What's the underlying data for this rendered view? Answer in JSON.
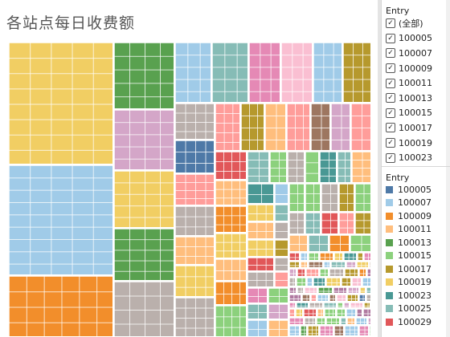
{
  "title": "各站点每日收费额",
  "filter": {
    "heading": "Entry",
    "items": [
      "(全部)",
      "100005",
      "100007",
      "100009",
      "100011",
      "100013",
      "100015",
      "100017",
      "100019",
      "100023"
    ],
    "check_glyph": "✓"
  },
  "legend": {
    "heading": "Entry",
    "items": [
      {
        "label": "100005",
        "color": "#4e79a7"
      },
      {
        "label": "100007",
        "color": "#a0cbe8"
      },
      {
        "label": "100009",
        "color": "#f28e2b"
      },
      {
        "label": "100011",
        "color": "#ffbe7d"
      },
      {
        "label": "100013",
        "color": "#59a14f"
      },
      {
        "label": "100015",
        "color": "#8cd17d"
      },
      {
        "label": "100017",
        "color": "#b6992d"
      },
      {
        "label": "100019",
        "color": "#f1ce63"
      },
      {
        "label": "100023",
        "color": "#499894"
      },
      {
        "label": "100025",
        "color": "#86bcb6"
      },
      {
        "label": "100029",
        "color": "#e15759"
      }
    ]
  },
  "treemap_colors": {
    "yellow": "#f1ce63",
    "lightblue": "#a0cbe8",
    "orange": "#f28e2b",
    "green": "#59a14f",
    "pink": "#d4a6c8",
    "taupe": "#bab0ac",
    "teal": "#86bcb6",
    "hotpink": "#e589b5",
    "lightpink": "#fabfd2",
    "olive": "#b6992d",
    "salmon": "#ff9d9a",
    "lightorange": "#ffbe7d",
    "navy": "#4e79a7",
    "red": "#e15759",
    "lightgreen": "#8cd17d",
    "darkteal": "#499894",
    "purple": "#b07aa1",
    "brown": "#9d7660",
    "gray": "#79706e"
  }
}
